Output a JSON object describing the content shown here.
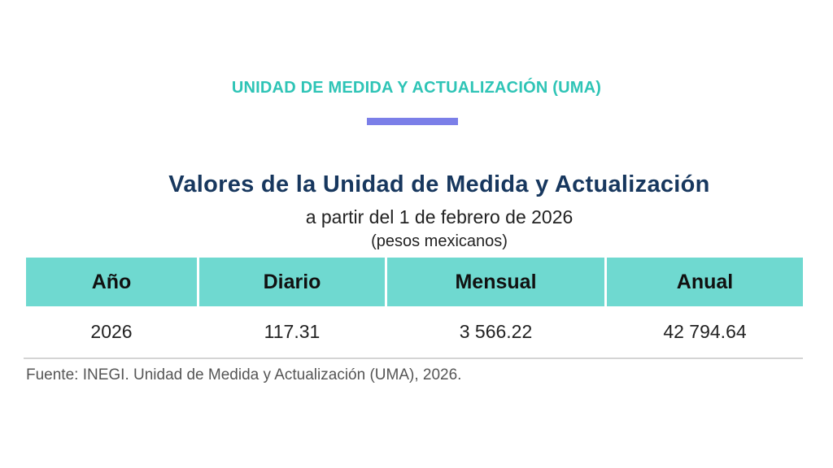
{
  "header": {
    "title": "UNIDAD DE MEDIDA Y ACTUALIZACIÓN (UMA)",
    "accent_color": "#2ec4b6",
    "rule_color": "#7b7fe8"
  },
  "table": {
    "title": "Valores de la Unidad de Medida y Actualización",
    "subtitle": "a partir del 1 de febrero de 2026",
    "units": "(pesos mexicanos)",
    "header_color": "#6fd9d0",
    "columns": [
      "Año",
      "Diario",
      "Mensual",
      "Anual"
    ],
    "rows": [
      [
        "2026",
        "117.31",
        "3 566.22",
        "42 794.64"
      ]
    ]
  },
  "source": "Fuente: INEGI. Unidad de Medida y Actualización (UMA), 2026."
}
